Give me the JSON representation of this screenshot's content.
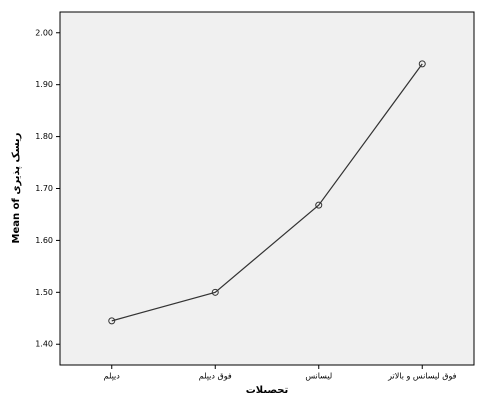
{
  "chart_data": {
    "type": "line",
    "x_label": "تحصیلات",
    "y_label": "Mean of ریسک پذیری",
    "categories": [
      "دیپلم",
      "فوق دیپلم",
      "لیسانس",
      "فوق لیسانس و بالاتر"
    ],
    "values": [
      1.445,
      1.5,
      1.668,
      1.94
    ],
    "color": "#333333",
    "ylim": [
      1.36,
      2.04
    ],
    "yticks": [
      {
        "value": 1.4,
        "label": "1.40"
      },
      {
        "value": 1.5,
        "label": "1.50"
      },
      {
        "value": 1.6,
        "label": "1.60"
      },
      {
        "value": 1.7,
        "label": "1.70"
      },
      {
        "value": 1.8,
        "label": "1.80"
      },
      {
        "value": 1.9,
        "label": "1.90"
      },
      {
        "value": 2.0,
        "label": "2.00"
      }
    ]
  }
}
